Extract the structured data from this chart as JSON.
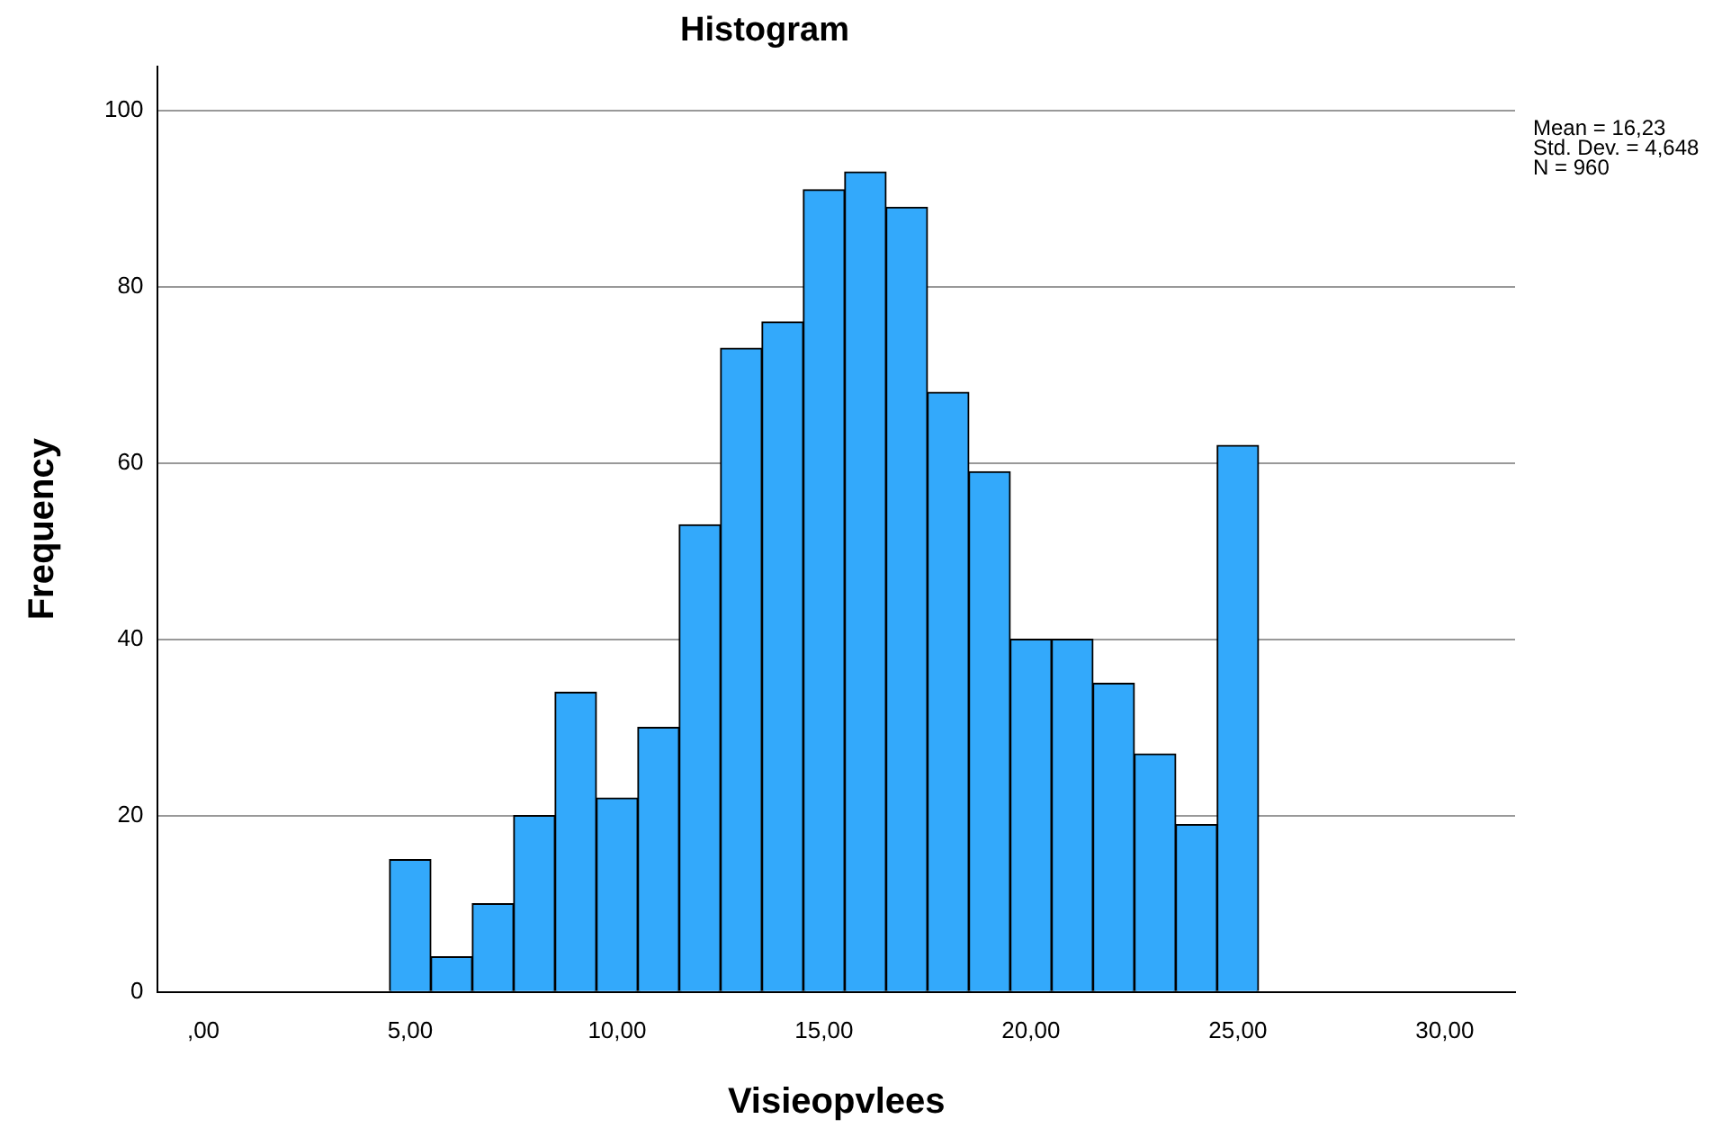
{
  "chart_data": {
    "type": "histogram",
    "title": "Histogram",
    "xlabel": "Visieopvlees",
    "ylabel": "Frequency",
    "bins": [
      4.5,
      5.5,
      6.5,
      7.5,
      8.5,
      9.5,
      10.5,
      11.5,
      12.5,
      13.5,
      14.5,
      15.5,
      16.5,
      17.5,
      18.5,
      19.5,
      20.5,
      21.5,
      22.5,
      23.5,
      24.5,
      25.5
    ],
    "values": [
      15,
      4,
      10,
      20,
      34,
      22,
      30,
      53,
      73,
      76,
      91,
      93,
      89,
      68,
      59,
      40,
      40,
      35,
      27,
      19,
      62
    ],
    "color": "#33a9fb",
    "xlim": [
      -1.1,
      31.7
    ],
    "xticks": [
      {
        "value": 0,
        "label": ",00"
      },
      {
        "value": 5,
        "label": "5,00"
      },
      {
        "value": 10,
        "label": "10,00"
      },
      {
        "value": 15,
        "label": "15,00"
      },
      {
        "value": 20,
        "label": "20,00"
      },
      {
        "value": 25,
        "label": "25,00"
      },
      {
        "value": 30,
        "label": "30,00"
      }
    ],
    "ylim": [
      0,
      105
    ],
    "yticks": [
      0,
      20,
      40,
      60,
      80,
      100
    ],
    "grid": "y",
    "legend": false,
    "annotations": [
      "Mean = 16,23",
      "Std. Dev. = 4,648",
      "N = 960"
    ]
  }
}
